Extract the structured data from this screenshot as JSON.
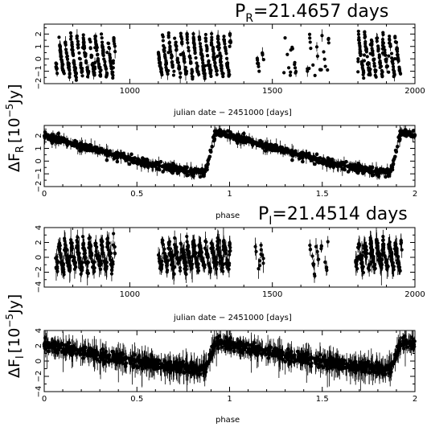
{
  "figure": {
    "ylabel_prefix": "ΔF",
    "units_main": "[10",
    "units_exp": "−5",
    "units_tail": "Jy]"
  },
  "chart_data": [
    {
      "type": "scatter",
      "band": "R",
      "title_prefix": "P",
      "title_sub": "R",
      "title_suffix": "=21.4657 days",
      "xlabel": "julian date − 2451000 [days]",
      "xlim": [
        700,
        2000
      ],
      "ylim": [
        -2,
        2.8
      ],
      "xticks": [
        1000,
        1500,
        2000
      ],
      "yticks": [
        -2,
        -1,
        0,
        1,
        2
      ],
      "period": 21.4657,
      "amplitude_peak": 2.3,
      "amplitude_min": -0.9,
      "seasons": [
        [
          740,
          950
        ],
        [
          1100,
          1355
        ],
        [
          1440,
          1470
        ],
        [
          1540,
          1585
        ],
        [
          1620,
          1700
        ],
        [
          1800,
          1950
        ]
      ],
      "point_count_estimate": 650
    },
    {
      "type": "scatter",
      "band": "R",
      "title": "",
      "xlabel": "phase",
      "xlim": [
        0,
        2
      ],
      "ylim": [
        -2,
        2.8
      ],
      "xticks": [
        0,
        0.5,
        1,
        1.5,
        2
      ],
      "yticks": [
        -2,
        -1,
        0,
        1,
        2
      ],
      "folded": true,
      "peak_phase": 0.93,
      "amplitude_peak": 2.3,
      "amplitude_min": -0.9,
      "error_bar_typical": 0.25
    },
    {
      "type": "scatter",
      "band": "I",
      "title_prefix": "P",
      "title_sub": "I",
      "title_suffix": "=21.4514 days",
      "xlabel": "julian date − 2451000 [days]",
      "xlim": [
        700,
        2000
      ],
      "ylim": [
        -4,
        4
      ],
      "xticks": [
        1000,
        1500,
        2000
      ],
      "yticks": [
        -4,
        -2,
        0,
        2,
        4
      ],
      "period": 21.4514,
      "amplitude_peak": 2.5,
      "amplitude_min": -1.1,
      "seasons": [
        [
          740,
          950
        ],
        [
          1100,
          1355
        ],
        [
          1440,
          1470
        ],
        [
          1630,
          1700
        ],
        [
          1790,
          1955
        ]
      ],
      "point_count_estimate": 600
    },
    {
      "type": "scatter",
      "band": "I",
      "title": "",
      "xlabel": "phase",
      "xlim": [
        0,
        2
      ],
      "ylim": [
        -4,
        4
      ],
      "xticks": [
        0,
        0.5,
        1,
        1.5,
        2
      ],
      "yticks": [
        -4,
        -2,
        0,
        2,
        4
      ],
      "folded": true,
      "peak_phase": 0.93,
      "amplitude_peak": 2.5,
      "amplitude_min": -1.1,
      "error_bar_typical": 0.9
    }
  ]
}
